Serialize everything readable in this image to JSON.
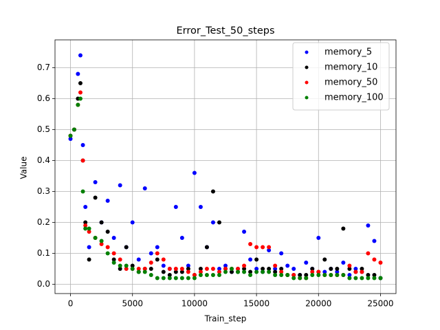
{
  "chart_data": {
    "type": "scatter",
    "title": "Error_Test_50_steps",
    "x_label": "Train_step",
    "y_label": "Value",
    "x": [
      0,
      300,
      600,
      800,
      1000,
      1200,
      1500,
      2000,
      2500,
      3000,
      3500,
      4000,
      4500,
      5000,
      5500,
      6000,
      6500,
      7000,
      7500,
      8000,
      8500,
      9000,
      9500,
      10000,
      10500,
      11000,
      11500,
      12000,
      12500,
      13000,
      13500,
      14000,
      14500,
      15000,
      15500,
      16000,
      16500,
      17000,
      17500,
      18000,
      18500,
      19000,
      19500,
      20000,
      20500,
      21000,
      21500,
      22000,
      22500,
      23000,
      23500,
      24000,
      24500,
      25000
    ],
    "series": [
      {
        "name": "memory_5",
        "color": "#0000ff",
        "values": [
          0.47,
          0.5,
          0.68,
          0.74,
          0.45,
          0.25,
          0.12,
          0.33,
          0.2,
          0.27,
          0.15,
          0.32,
          0.12,
          0.2,
          0.08,
          0.31,
          0.1,
          0.12,
          0.06,
          0.05,
          0.25,
          0.15,
          0.06,
          0.36,
          0.25,
          0.12,
          0.2,
          0.05,
          0.06,
          0.04,
          0.05,
          0.17,
          0.08,
          0.05,
          0.04,
          0.11,
          0.05,
          0.1,
          0.06,
          0.05,
          0.03,
          0.07,
          0.05,
          0.15,
          0.04,
          0.05,
          0.04,
          0.07,
          0.03,
          0.05,
          0.04,
          0.19,
          0.14,
          0.02
        ]
      },
      {
        "name": "memory_10",
        "color": "#000000",
        "values": [
          0.48,
          0.5,
          0.6,
          0.65,
          0.4,
          0.2,
          0.08,
          0.28,
          0.2,
          0.17,
          0.08,
          0.05,
          0.12,
          0.06,
          0.04,
          0.05,
          0.05,
          0.08,
          0.04,
          0.03,
          0.04,
          0.04,
          0.05,
          0.03,
          0.05,
          0.12,
          0.3,
          0.2,
          0.05,
          0.04,
          0.04,
          0.05,
          0.04,
          0.08,
          0.05,
          0.05,
          0.04,
          0.05,
          0.03,
          0.03,
          0.03,
          0.03,
          0.05,
          0.04,
          0.08,
          0.05,
          0.05,
          0.18,
          0.05,
          0.04,
          0.05,
          0.03,
          0.03,
          0.02
        ]
      },
      {
        "name": "memory_50",
        "color": "#ff0000",
        "values": [
          0.48,
          0.5,
          0.58,
          0.62,
          0.4,
          0.19,
          0.17,
          0.15,
          0.13,
          0.12,
          0.1,
          0.08,
          0.05,
          0.05,
          0.05,
          0.05,
          0.07,
          0.1,
          0.08,
          0.05,
          0.05,
          0.05,
          0.04,
          0.03,
          0.04,
          0.05,
          0.05,
          0.04,
          0.05,
          0.05,
          0.05,
          0.06,
          0.13,
          0.12,
          0.12,
          0.12,
          0.06,
          0.04,
          0.03,
          0.03,
          0.02,
          0.02,
          0.04,
          0.04,
          0.03,
          0.03,
          0.03,
          0.03,
          0.06,
          0.04,
          0.04,
          0.1,
          0.08,
          0.07
        ]
      },
      {
        "name": "memory_100",
        "color": "#008000",
        "values": [
          0.48,
          0.5,
          0.58,
          0.6,
          0.3,
          0.18,
          0.18,
          0.15,
          0.14,
          0.1,
          0.07,
          0.06,
          0.06,
          0.05,
          0.04,
          0.04,
          0.03,
          0.02,
          0.02,
          0.02,
          0.02,
          0.02,
          0.02,
          0.02,
          0.03,
          0.03,
          0.03,
          0.03,
          0.04,
          0.05,
          0.04,
          0.04,
          0.03,
          0.04,
          0.04,
          0.04,
          0.03,
          0.03,
          0.03,
          0.02,
          0.02,
          0.02,
          0.03,
          0.03,
          0.03,
          0.03,
          0.03,
          0.03,
          0.02,
          0.02,
          0.02,
          0.02,
          0.02,
          0.02
        ]
      }
    ],
    "xlim": [
      -1250,
      26250
    ],
    "ylim": [
      -0.03,
      0.79
    ],
    "xticks": [
      0,
      5000,
      10000,
      15000,
      20000,
      25000
    ],
    "yticks": [
      {
        "value": 0,
        "label": "0.0"
      },
      0.1,
      0.2,
      0.3,
      0.4,
      0.5,
      0.6,
      0.7
    ],
    "grid": true,
    "legend_loc": "upper right"
  }
}
